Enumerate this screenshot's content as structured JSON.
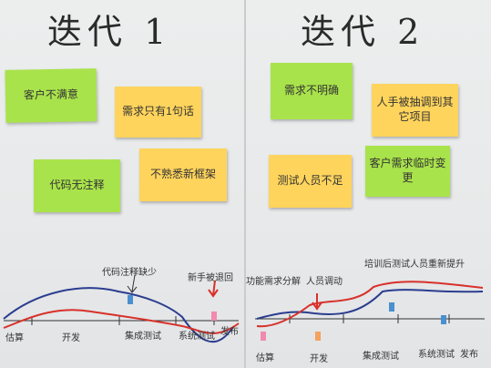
{
  "headings": {
    "left": "迭代 1",
    "right": "迭代 2"
  },
  "left_notes": [
    {
      "text": "客户不满意",
      "color": "green"
    },
    {
      "text": "需求只有1句话",
      "color": "orange"
    },
    {
      "text": "代码无注释",
      "color": "green"
    },
    {
      "text": "不熟悉新框架",
      "color": "orange"
    }
  ],
  "right_notes": [
    {
      "text": "需求不明确",
      "color": "green"
    },
    {
      "text": "人手被抽调到其它项目",
      "color": "orange"
    },
    {
      "text": "测试人员不足",
      "color": "orange"
    },
    {
      "text": "客户需求临时变更",
      "color": "green"
    }
  ],
  "left_timeline": {
    "stages": [
      "估算",
      "开发",
      "集成测试",
      "系统测试",
      "发布"
    ],
    "annotations": [
      "代码注释缺少",
      "新手被退回"
    ]
  },
  "right_timeline": {
    "stages": [
      "估算",
      "开发",
      "集成测试",
      "系统测试",
      "发布"
    ],
    "annotations": [
      "功能需求分解",
      "人员调动",
      "培训后测试人员重新提升"
    ]
  },
  "colors": {
    "blue": "#2b3d8f",
    "red": "#d8312a",
    "green": "#a9e34b",
    "orange": "#ffd45c"
  }
}
